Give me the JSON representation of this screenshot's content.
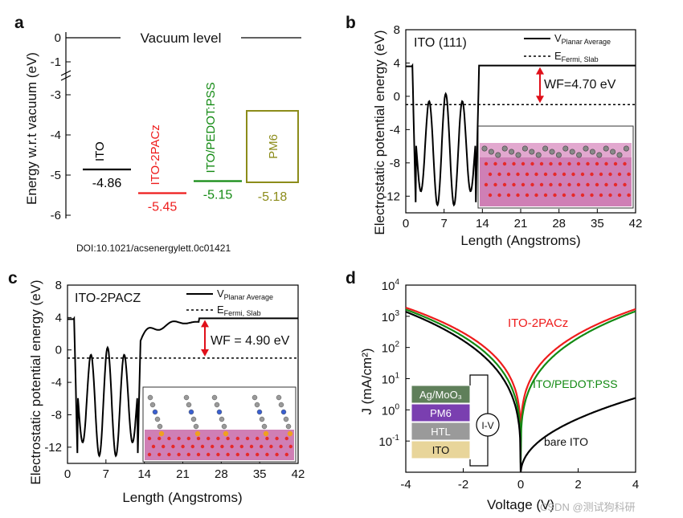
{
  "source_doi": "DOI:10.1021/acsenergylett.0c01421",
  "watermark": "CSDN @测试狗科研",
  "chart_data": [
    {
      "id": "a",
      "type": "energy_level_diagram",
      "panel_label": "a",
      "ylabel": "Energy w.r.t vacuum (eV)",
      "yticks": [
        "0",
        "-1",
        "-3",
        "-4",
        "-5",
        "-6"
      ],
      "axis_break": true,
      "vacuum_label": "Vacuum level",
      "levels": [
        {
          "name": "ITO",
          "value": -4.86,
          "value_label": "-4.86",
          "color": "#000000"
        },
        {
          "name": "ITO-2PACz",
          "value": -5.45,
          "value_label": "-5.45",
          "color": "#ee1c1c"
        },
        {
          "name": "ITO/PEDOT:PSS",
          "value": -5.15,
          "value_label": "-5.15",
          "color": "#138a13"
        },
        {
          "name": "PM6",
          "value": -5.18,
          "value_label": "-5.18",
          "color": "#8c8c1a",
          "homo_box": true,
          "top": -3.4
        }
      ]
    },
    {
      "id": "b",
      "type": "line",
      "panel_label": "b",
      "title": "ITO (111)",
      "xlabel": "Length (Angstroms)",
      "ylabel": "Electrostatic potential energy (eV)",
      "xlim": [
        0,
        42
      ],
      "ylim": [
        -14,
        8
      ],
      "xticks": [
        "0",
        "7",
        "14",
        "21",
        "28",
        "35",
        "42"
      ],
      "yticks": [
        "8",
        "4",
        "0",
        "-4",
        "-8",
        "-12"
      ],
      "legend": {
        "line_main": "V",
        "line_sub": "Planar Average",
        "dash_main": "E",
        "dash_sub": "Fermi, Slab"
      },
      "fermi_level": -1.0,
      "vacuum_potential": 3.7,
      "wf_label": "WF=4.70 eV",
      "inset": "slab structure"
    },
    {
      "id": "c",
      "type": "line",
      "panel_label": "c",
      "title": "ITO-2PACZ",
      "xlabel": "Length (Angstroms)",
      "ylabel": "Electrostatic potential energy (eV)",
      "xlim": [
        0,
        42
      ],
      "ylim": [
        -14,
        8
      ],
      "xticks": [
        "0",
        "7",
        "14",
        "21",
        "28",
        "35",
        "42"
      ],
      "yticks": [
        "8",
        "4",
        "0",
        "-4",
        "-8",
        "-12"
      ],
      "legend": {
        "line_main": "V",
        "line_sub": "Planar Average",
        "dash_main": "E",
        "dash_sub": "Fermi, Slab"
      },
      "fermi_level": -1.0,
      "vacuum_potential": 3.9,
      "wf_label": "WF = 4.90 eV",
      "inset": "slab structure with adsorbed molecules"
    },
    {
      "id": "d",
      "type": "line",
      "panel_label": "d",
      "xlabel": "Voltage (V)",
      "ylabel": "J (mA/cm²)",
      "yscale": "log",
      "xlim": [
        -4,
        4
      ],
      "ylim_exp": [
        -2,
        4
      ],
      "xticks": [
        "-4",
        "-2",
        "0",
        "2",
        "4"
      ],
      "ytick_exps": [
        "4",
        "3",
        "2",
        "1",
        "0",
        "-1"
      ],
      "series": [
        {
          "name": "ITO-2PACz",
          "color": "#ee1c1c",
          "scale": 1,
          "j_neg4": 1900,
          "j_pos4": 1700,
          "j_min": 0.05
        },
        {
          "name": "ITO/PEDOT:PSS",
          "color": "#138a13",
          "scale": 1,
          "j_neg4": 1650,
          "j_pos4": 1450,
          "j_min": 0.02
        },
        {
          "name": "bare ITO",
          "color": "#000000",
          "scale": 1,
          "j_neg4": 1400,
          "j_pos4": 2.4,
          "j_min": 0.008
        }
      ],
      "device_stack": [
        {
          "label": "Ag/MoO₃",
          "color": "#5f7f5a"
        },
        {
          "label": "PM6",
          "color": "#7a3fb0"
        },
        {
          "label": "HTL",
          "color": "#9a9a9a"
        },
        {
          "label": "ITO",
          "color": "#e8d59a"
        }
      ],
      "meter_label": "I-V"
    }
  ]
}
